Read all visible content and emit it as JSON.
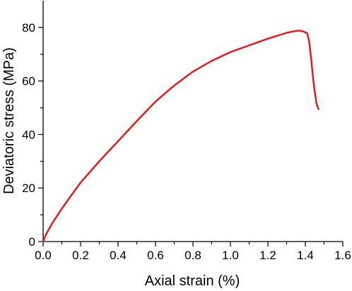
{
  "chart_data": {
    "type": "line",
    "title": "",
    "xlabel": "Axial strain (%)",
    "ylabel": "Deviatoric stress (MPa)",
    "xlim": [
      0,
      1.6
    ],
    "ylim": [
      0,
      90
    ],
    "x_ticks": [
      0.0,
      0.2,
      0.4,
      0.6,
      0.8,
      1.0,
      1.2,
      1.4,
      1.6
    ],
    "x_tick_labels": [
      "0.0",
      "0.2",
      "0.4",
      "0.6",
      "0.8",
      "1.0",
      "1.2",
      "1.4",
      "1.6"
    ],
    "y_ticks": [
      0,
      20,
      40,
      60,
      80
    ],
    "y_tick_labels": [
      "0",
      "20",
      "40",
      "60",
      "80"
    ],
    "grid": false,
    "legend": "none",
    "series": [
      {
        "color": "#ee1111",
        "x": [
          0.0,
          0.01,
          0.02,
          0.05,
          0.1,
          0.15,
          0.2,
          0.3,
          0.4,
          0.5,
          0.6,
          0.7,
          0.8,
          0.9,
          1.0,
          1.1,
          1.2,
          1.3,
          1.35,
          1.37,
          1.39,
          1.41,
          1.42,
          1.43,
          1.44,
          1.45,
          1.46,
          1.47
        ],
        "y": [
          0.0,
          1.8,
          3.2,
          7.0,
          12.3,
          17.2,
          22.0,
          30.0,
          37.5,
          45.0,
          52.3,
          58.3,
          63.5,
          67.5,
          70.8,
          73.3,
          75.8,
          78.0,
          78.7,
          78.8,
          78.5,
          77.8,
          75.0,
          69.0,
          62.0,
          56.0,
          51.5,
          49.5
        ]
      }
    ]
  }
}
